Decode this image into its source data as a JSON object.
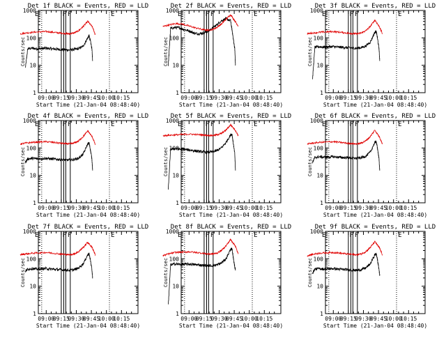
{
  "chart_data": [
    {
      "type": "line",
      "title": "Det 1f BLACK = Events, RED = LLD",
      "ylabel": "Counts/sec",
      "xlabel": "Start Time (21-Jan-04 08:48:40)",
      "x_ticks": [
        "09:00",
        "09:15",
        "09:30",
        "09:45",
        "10:00",
        "10:15"
      ],
      "y_ticks": [
        "1",
        "10",
        "100",
        "1000"
      ],
      "yscale": "log",
      "ylim": [
        1,
        1000
      ],
      "x_range_minutes": [
        -11.3,
        21.3
      ],
      "markers": [
        "E",
        "F",
        "F",
        "E"
      ],
      "series": [
        {
          "name": "Events",
          "color": "#000000",
          "x": [
            -9,
            -8,
            -6,
            -4,
            -2,
            0,
            2,
            4,
            6,
            8,
            10,
            12,
            14,
            16,
            18,
            18.6,
            19.1,
            19.8,
            20.1
          ],
          "y": [
            8,
            40,
            42,
            40,
            41,
            42,
            40,
            39,
            38,
            37,
            36,
            38,
            40,
            50,
            100,
            120,
            80,
            40,
            15
          ]
        },
        {
          "name": "LLD",
          "color": "#e00000",
          "x": [
            -11.3,
            -9,
            -6,
            -3,
            0,
            3,
            6,
            8,
            10,
            12,
            14,
            16,
            18,
            20,
            21.3
          ],
          "y": [
            140,
            150,
            160,
            165,
            170,
            160,
            150,
            145,
            140,
            150,
            180,
            260,
            400,
            250,
            130
          ]
        }
      ]
    },
    {
      "type": "line",
      "title": "Det 2f BLACK = Events, RED = LLD",
      "ylabel": "Counts/sec",
      "xlabel": "Start Time (21-Jan-04 08:48:40)",
      "x_ticks": [
        "09:00",
        "09:15",
        "09:30",
        "09:45",
        "10:00",
        "10:15"
      ],
      "y_ticks": [
        "1",
        "10",
        "100",
        "1000"
      ],
      "yscale": "log",
      "ylim": [
        1,
        1000
      ],
      "x_range_minutes": [
        -11.3,
        21.3
      ],
      "markers": [
        "E",
        "F",
        "F",
        "E"
      ],
      "series": [
        {
          "name": "Events",
          "color": "#000000",
          "x": [
            -9,
            -8,
            -6,
            -4,
            -2,
            0,
            2,
            4,
            6,
            8,
            10,
            12,
            14,
            16,
            18,
            18.6,
            19.1,
            19.8,
            20.1
          ],
          "y": [
            10,
            220,
            240,
            230,
            200,
            180,
            150,
            140,
            150,
            170,
            220,
            300,
            420,
            500,
            420,
            200,
            100,
            40,
            10
          ]
        },
        {
          "name": "LLD",
          "color": "#e00000",
          "x": [
            -11.3,
            -9,
            -6,
            -3,
            0,
            3,
            6,
            8,
            10,
            12,
            14,
            16,
            18,
            20,
            21.3
          ],
          "y": [
            260,
            290,
            330,
            320,
            270,
            230,
            200,
            190,
            200,
            240,
            320,
            480,
            700,
            400,
            270
          ]
        }
      ]
    },
    {
      "type": "line",
      "title": "Det 3f BLACK = Events, RED = LLD",
      "ylabel": "Counts/sec",
      "xlabel": "Start Time (21-Jan-04 08:48:40)",
      "x_ticks": [
        "09:00",
        "09:15",
        "09:30",
        "09:45",
        "10:00",
        "10:15"
      ],
      "y_ticks": [
        "1",
        "10",
        "100",
        "1000"
      ],
      "yscale": "log",
      "ylim": [
        1,
        1000
      ],
      "x_range_minutes": [
        -11.3,
        21.3
      ],
      "markers": [
        "E",
        "F",
        "F",
        "E"
      ],
      "series": [
        {
          "name": "Events",
          "color": "#000000",
          "x": [
            -9,
            -8,
            -6,
            -4,
            -2,
            0,
            2,
            4,
            6,
            8,
            10,
            12,
            14,
            16,
            18,
            18.6,
            19.1,
            19.8,
            20.1
          ],
          "y": [
            3,
            45,
            48,
            46,
            47,
            48,
            46,
            45,
            44,
            43,
            42,
            44,
            50,
            70,
            160,
            170,
            100,
            40,
            15
          ]
        },
        {
          "name": "LLD",
          "color": "#e00000",
          "x": [
            -11.3,
            -9,
            -6,
            -3,
            0,
            3,
            6,
            8,
            10,
            12,
            14,
            16,
            18,
            20,
            21.3
          ],
          "y": [
            140,
            150,
            160,
            165,
            170,
            160,
            150,
            145,
            140,
            150,
            180,
            260,
            450,
            250,
            140
          ]
        }
      ]
    },
    {
      "type": "line",
      "title": "Det 4f BLACK = Events, RED = LLD",
      "ylabel": "Counts/sec",
      "xlabel": "Start Time (21-Jan-04 08:48:40)",
      "x_ticks": [
        "09:00",
        "09:15",
        "09:30",
        "09:45",
        "10:00",
        "10:15"
      ],
      "y_ticks": [
        "1",
        "10",
        "100",
        "1000"
      ],
      "yscale": "log",
      "ylim": [
        1,
        1000
      ],
      "x_range_minutes": [
        -11.3,
        21.3
      ],
      "markers": [
        "E",
        "F",
        "F",
        "E"
      ],
      "series": [
        {
          "name": "Events",
          "color": "#000000",
          "x": [
            -9,
            -8,
            -6,
            -4,
            -2,
            0,
            2,
            4,
            6,
            8,
            10,
            12,
            14,
            16,
            18,
            18.6,
            19.1,
            19.8,
            20.1
          ],
          "y": [
            30,
            40,
            42,
            40,
            41,
            42,
            40,
            39,
            38,
            37,
            36,
            38,
            42,
            60,
            140,
            150,
            90,
            40,
            15
          ]
        },
        {
          "name": "LLD",
          "color": "#e00000",
          "x": [
            -11.3,
            -9,
            -6,
            -3,
            0,
            3,
            6,
            8,
            10,
            12,
            14,
            16,
            18,
            20,
            21.3
          ],
          "y": [
            140,
            150,
            160,
            165,
            170,
            160,
            150,
            145,
            140,
            150,
            180,
            260,
            420,
            250,
            130
          ]
        }
      ]
    },
    {
      "type": "line",
      "title": "Det 5f BLACK = Events, RED = LLD",
      "ylabel": "Counts/sec",
      "xlabel": "Start Time (21-Jan-04 08:48:40)",
      "x_ticks": [
        "09:00",
        "09:15",
        "09:30",
        "09:45",
        "10:00",
        "10:15"
      ],
      "y_ticks": [
        "1",
        "10",
        "100",
        "1000"
      ],
      "yscale": "log",
      "ylim": [
        1,
        1000
      ],
      "x_range_minutes": [
        -11.3,
        21.3
      ],
      "markers": [
        "E",
        "F",
        "F",
        "E"
      ],
      "series": [
        {
          "name": "Events",
          "color": "#000000",
          "x": [
            -9,
            -8,
            -6,
            -4,
            -2,
            0,
            2,
            4,
            6,
            8,
            10,
            12,
            14,
            16,
            18,
            18.6,
            19.1,
            19.8,
            20.1
          ],
          "y": [
            3,
            90,
            95,
            90,
            88,
            85,
            80,
            75,
            72,
            70,
            72,
            80,
            100,
            160,
            300,
            320,
            160,
            60,
            15
          ]
        },
        {
          "name": "LLD",
          "color": "#e00000",
          "x": [
            -11.3,
            -9,
            -6,
            -3,
            0,
            3,
            6,
            8,
            10,
            12,
            14,
            16,
            18,
            20,
            21.3
          ],
          "y": [
            280,
            290,
            300,
            310,
            320,
            310,
            300,
            290,
            285,
            300,
            340,
            450,
            700,
            450,
            280
          ]
        }
      ]
    },
    {
      "type": "line",
      "title": "Det 6f BLACK = Events, RED = LLD",
      "ylabel": "Counts/sec",
      "xlabel": "Start Time (21-Jan-04 08:48:40)",
      "x_ticks": [
        "09:00",
        "09:15",
        "09:30",
        "09:45",
        "10:00",
        "10:15"
      ],
      "y_ticks": [
        "1",
        "10",
        "100",
        "1000"
      ],
      "yscale": "log",
      "ylim": [
        1,
        1000
      ],
      "x_range_minutes": [
        -11.3,
        21.3
      ],
      "markers": [
        "E",
        "F",
        "F",
        "E"
      ],
      "series": [
        {
          "name": "Events",
          "color": "#000000",
          "x": [
            -9,
            -8,
            -6,
            -4,
            -2,
            0,
            2,
            4,
            6,
            8,
            10,
            12,
            14,
            16,
            18,
            18.6,
            19.1,
            19.8,
            20.1
          ],
          "y": [
            30,
            45,
            48,
            46,
            47,
            48,
            46,
            45,
            44,
            43,
            42,
            44,
            50,
            70,
            160,
            170,
            100,
            40,
            15
          ]
        },
        {
          "name": "LLD",
          "color": "#e00000",
          "x": [
            -11.3,
            -9,
            -6,
            -3,
            0,
            3,
            6,
            8,
            10,
            12,
            14,
            16,
            18,
            20,
            21.3
          ],
          "y": [
            140,
            150,
            160,
            165,
            170,
            160,
            150,
            145,
            140,
            150,
            180,
            260,
            450,
            250,
            140
          ]
        }
      ]
    },
    {
      "type": "line",
      "title": "Det 7f BLACK = Events, RED = LLD",
      "ylabel": "Counts/sec",
      "xlabel": "Start Time (21-Jan-04 08:48:40)",
      "x_ticks": [
        "09:00",
        "09:15",
        "09:30",
        "09:45",
        "10:00",
        "10:15"
      ],
      "y_ticks": [
        "1",
        "10",
        "100",
        "1000"
      ],
      "yscale": "log",
      "ylim": [
        1,
        1000
      ],
      "x_range_minutes": [
        -11.3,
        21.3
      ],
      "markers": [
        "E",
        "F",
        "F",
        "E"
      ],
      "series": [
        {
          "name": "Events",
          "color": "#000000",
          "x": [
            -9,
            -8,
            -6,
            -4,
            -2,
            0,
            2,
            4,
            6,
            8,
            10,
            12,
            14,
            16,
            18,
            18.6,
            19.1,
            19.8,
            20.1
          ],
          "y": [
            35,
            42,
            44,
            42,
            43,
            44,
            42,
            41,
            40,
            39,
            38,
            40,
            46,
            65,
            140,
            150,
            95,
            40,
            20
          ]
        },
        {
          "name": "LLD",
          "color": "#e00000",
          "x": [
            -11.3,
            -9,
            -6,
            -3,
            0,
            3,
            6,
            8,
            10,
            12,
            14,
            16,
            18,
            20,
            21.3
          ],
          "y": [
            140,
            150,
            160,
            165,
            170,
            160,
            150,
            145,
            140,
            150,
            180,
            260,
            400,
            250,
            140
          ]
        }
      ]
    },
    {
      "type": "line",
      "title": "Det 8f BLACK = Events, RED = LLD",
      "ylabel": "Counts/sec",
      "xlabel": "Start Time (21-Jan-04 08:48:40)",
      "x_ticks": [
        "09:00",
        "09:15",
        "09:30",
        "09:45",
        "10:00",
        "10:15"
      ],
      "y_ticks": [
        "1",
        "10",
        "100",
        "1000"
      ],
      "yscale": "log",
      "ylim": [
        1,
        1000
      ],
      "x_range_minutes": [
        -11.3,
        21.3
      ],
      "markers": [
        "E",
        "F",
        "F",
        "E"
      ],
      "series": [
        {
          "name": "Events",
          "color": "#000000",
          "x": [
            -9,
            -8,
            -6,
            -4,
            -2,
            0,
            2,
            4,
            6,
            8,
            10,
            12,
            14,
            16,
            18,
            18.6,
            19.1,
            19.8,
            20.1
          ],
          "y": [
            2,
            60,
            65,
            62,
            63,
            64,
            62,
            60,
            58,
            57,
            56,
            60,
            70,
            100,
            220,
            230,
            120,
            50,
            40
          ]
        },
        {
          "name": "LLD",
          "color": "#e00000",
          "x": [
            -11.3,
            -9,
            -6,
            -3,
            0,
            3,
            6,
            8,
            10,
            12,
            14,
            16,
            18,
            20,
            21.3
          ],
          "y": [
            130,
            150,
            170,
            175,
            180,
            170,
            160,
            150,
            150,
            160,
            200,
            300,
            500,
            300,
            150
          ]
        }
      ]
    },
    {
      "type": "line",
      "title": "Det 9f BLACK = Events, RED = LLD",
      "ylabel": "Counts/sec",
      "xlabel": "Start Time (21-Jan-04 08:48:40)",
      "x_ticks": [
        "09:00",
        "09:15",
        "09:30",
        "09:45",
        "10:00",
        "10:15"
      ],
      "y_ticks": [
        "1",
        "10",
        "100",
        "1000"
      ],
      "yscale": "log",
      "ylim": [
        1,
        1000
      ],
      "x_range_minutes": [
        -11.3,
        21.3
      ],
      "markers": [
        "E",
        "F",
        "F",
        "E"
      ],
      "series": [
        {
          "name": "Events",
          "color": "#000000",
          "x": [
            -9,
            -8,
            -6,
            -4,
            -2,
            0,
            2,
            4,
            6,
            8,
            10,
            12,
            14,
            16,
            18,
            18.6,
            19.1,
            19.8,
            20.1
          ],
          "y": [
            30,
            42,
            44,
            42,
            43,
            44,
            42,
            41,
            40,
            39,
            38,
            40,
            46,
            65,
            140,
            150,
            95,
            40,
            25
          ]
        },
        {
          "name": "LLD",
          "color": "#e00000",
          "x": [
            -11.3,
            -9,
            -6,
            -3,
            0,
            3,
            6,
            8,
            10,
            12,
            14,
            16,
            18,
            20,
            21.3
          ],
          "y": [
            130,
            145,
            160,
            165,
            170,
            160,
            150,
            145,
            140,
            150,
            180,
            260,
            420,
            250,
            140
          ]
        }
      ]
    }
  ]
}
